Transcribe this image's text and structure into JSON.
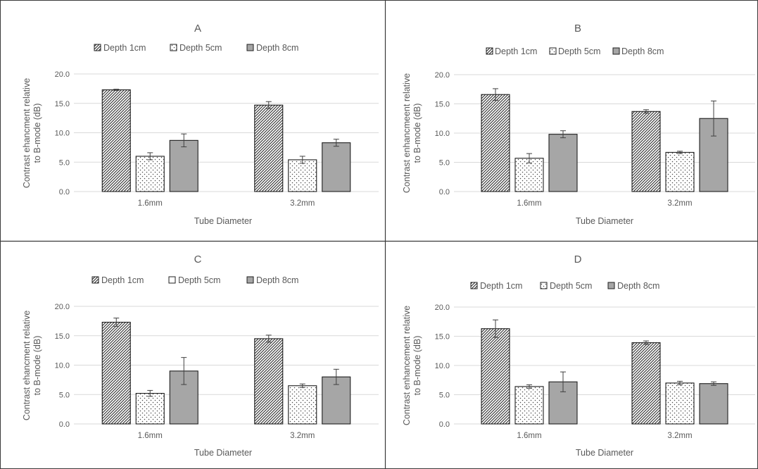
{
  "chart_data": [
    {
      "type": "bar",
      "title": "A",
      "categories": [
        "1.6mm",
        "3.2mm"
      ],
      "series": [
        {
          "name": "Depth 1cm",
          "pattern": "hatch",
          "values": [
            17.3,
            14.7
          ],
          "errors": [
            0.1,
            0.6
          ]
        },
        {
          "name": "Depth 5cm",
          "pattern": "dots",
          "values": [
            6.0,
            5.4
          ],
          "errors": [
            0.6,
            0.6
          ]
        },
        {
          "name": "Depth 8cm",
          "pattern": "solid",
          "values": [
            8.7,
            8.3
          ],
          "errors": [
            1.1,
            0.6
          ]
        }
      ],
      "xlabel": "Tube Diameter",
      "ylabel": [
        "Contrast ehancment relative",
        "to B-mode (dB)"
      ],
      "ylim": [
        0,
        20
      ],
      "yticks": [
        "0.0",
        "5.0",
        "10.0",
        "15.0",
        "20.0"
      ],
      "legend_position": "top",
      "grid": true
    },
    {
      "type": "bar",
      "title": "B",
      "categories": [
        "1.6mm",
        "3.2mm"
      ],
      "series": [
        {
          "name": "Depth 1cm",
          "pattern": "hatch",
          "values": [
            16.6,
            13.7
          ],
          "errors": [
            1.0,
            0.3
          ]
        },
        {
          "name": "Depth 5cm",
          "pattern": "dots",
          "values": [
            5.7,
            6.7
          ],
          "errors": [
            0.8,
            0.2
          ]
        },
        {
          "name": "Depth 8cm",
          "pattern": "solid",
          "values": [
            9.8,
            12.5
          ],
          "errors": [
            0.6,
            3.0
          ]
        }
      ],
      "xlabel": "Tube Diameter",
      "ylabel": [
        "Contrast enhancmeent relative",
        "to B-mode (dB)"
      ],
      "ylim": [
        0,
        20
      ],
      "yticks": [
        "0.0",
        "5.0",
        "10.0",
        "15.0",
        "20.0"
      ],
      "legend_position": "top",
      "grid": true
    },
    {
      "type": "bar",
      "title": "C",
      "categories": [
        "1.6mm",
        "3.2mm"
      ],
      "series": [
        {
          "name": "Depth 1cm",
          "pattern": "hatch",
          "values": [
            17.3,
            14.5
          ],
          "errors": [
            0.7,
            0.6
          ]
        },
        {
          "name": "Depth 5cm",
          "pattern": "dots",
          "values": [
            5.2,
            6.5
          ],
          "errors": [
            0.5,
            0.3
          ]
        },
        {
          "name": "Depth 8cm",
          "pattern": "solid",
          "values": [
            9.0,
            8.0
          ],
          "errors": [
            2.3,
            1.3
          ]
        }
      ],
      "xlabel": "Tube Diameter",
      "ylabel": [
        "Contrast ehancment relative",
        "to B-mode (dB)"
      ],
      "ylim": [
        0,
        20
      ],
      "yticks": [
        "0.0",
        "5.0",
        "10.0",
        "15.0",
        "20.0"
      ],
      "legend_position": "top",
      "grid": true
    },
    {
      "type": "bar",
      "title": "D",
      "categories": [
        "1.6mm",
        "3.2mm"
      ],
      "series": [
        {
          "name": "Depth 1cm",
          "pattern": "hatch",
          "values": [
            16.3,
            13.9
          ],
          "errors": [
            1.5,
            0.3
          ]
        },
        {
          "name": "Depth 5cm",
          "pattern": "dots",
          "values": [
            6.4,
            7.0
          ],
          "errors": [
            0.3,
            0.3
          ]
        },
        {
          "name": "Depth 8cm",
          "pattern": "solid",
          "values": [
            7.2,
            6.9
          ],
          "errors": [
            1.7,
            0.3
          ]
        }
      ],
      "xlabel": "Tube Diameter",
      "ylabel": [
        "Contrast enhancement  relative",
        "to B-mode (dB)"
      ],
      "ylim": [
        0,
        20
      ],
      "yticks": [
        "0.0",
        "5.0",
        "10.0",
        "15.0",
        "20.0"
      ],
      "legend_position": "top",
      "grid": true
    }
  ],
  "colors": {
    "background": "#ffffff",
    "frame": "#3a3a3a",
    "gridline": "#d9d9d9",
    "bar_outline": "#1f1f1f",
    "hatch": "#2b2b2b",
    "dots": "#4a4a4a",
    "solid_fill": "#a6a6a6",
    "text": "#595959"
  }
}
